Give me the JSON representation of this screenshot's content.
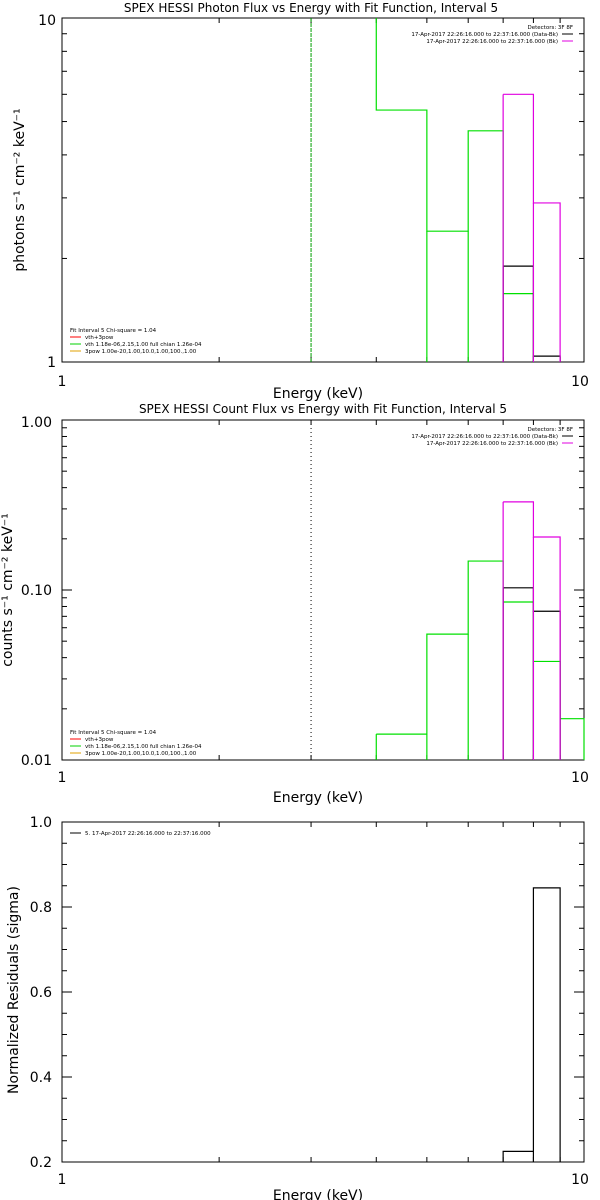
{
  "chart_data": [
    {
      "type": "step",
      "title": "SPEX HESSI Photon Flux vs Energy with Fit Function, Interval 5",
      "xlabel": "Energy (keV)",
      "ylabel": "photons s⁻¹ cm⁻² keV⁻¹",
      "xscale": "log",
      "yscale": "log",
      "xlim": [
        1,
        10
      ],
      "ylim": [
        1,
        10
      ],
      "x_ticks": [
        "1",
        "10"
      ],
      "y_ticks": [
        "1",
        "10"
      ],
      "vline": {
        "x": 3.0,
        "color": "#00a000",
        "style": "dashed"
      },
      "legend_top_right": {
        "header": "Detectors: 3F 8F",
        "entries": [
          {
            "label": "17-Apr-2017 22:26:16.000 to 22:37:16.000 (Data-Bk)",
            "color": "#000000"
          },
          {
            "label": "17-Apr-2017 22:26:16.000 to 22:37:16.000 (Bk)",
            "color": "#e000e0"
          }
        ]
      },
      "legend_bottom_left": {
        "header": "Fit Interval 5   Chi-square = 1.04",
        "entries": [
          {
            "label": "vth+3pow",
            "color": "#ff0000"
          },
          {
            "label": "vth 1.18e-06,2.15,1.00  full chian 1.26e-04",
            "color": "#00d000"
          },
          {
            "label": "3pow 1.00e-20,1.00,10.0,1.00,100.,1.00",
            "color": "#e0a000"
          }
        ]
      },
      "series": [
        {
          "color": "#00e000",
          "edges": [
            4.0,
            5.0,
            6.0,
            7.0,
            8.0
          ],
          "values": [
            5.4,
            2.4,
            4.7,
            1.58
          ],
          "left_edge_to_top": true
        },
        {
          "color": "#000000",
          "edges": [
            7.0,
            8.0,
            9.0
          ],
          "values": [
            1.9,
            1.04
          ]
        },
        {
          "color": "#e000e0",
          "edges": [
            7.0,
            8.0,
            9.0
          ],
          "values": [
            6.0,
            2.9
          ]
        }
      ]
    },
    {
      "type": "step",
      "title": "SPEX HESSI Count Flux vs Energy with Fit Function, Interval 5",
      "xlabel": "Energy (keV)",
      "ylabel": "counts s⁻¹ cm⁻² keV⁻¹",
      "xscale": "log",
      "yscale": "log",
      "xlim": [
        1,
        10
      ],
      "ylim": [
        0.01,
        1.0
      ],
      "x_ticks": [
        "1",
        "10"
      ],
      "y_ticks": [
        "0.01",
        "0.10",
        "1.00"
      ],
      "vline": {
        "x": 3.0,
        "color": "#000000",
        "style": "dotted"
      },
      "legend_top_right": {
        "header": "Detectors: 3F 8F",
        "entries": [
          {
            "label": "17-Apr-2017 22:26:16.000 to 22:37:16.000 (Data-Bk)",
            "color": "#000000"
          },
          {
            "label": "17-Apr-2017 22:26:16.000 to 22:37:16.000 (Bk)",
            "color": "#e000e0"
          }
        ]
      },
      "legend_bottom_left": {
        "header": "Fit Interval 5   Chi-square = 1.04",
        "entries": [
          {
            "label": "vth+3pow",
            "color": "#ff0000"
          },
          {
            "label": "vth 1.18e-06,2.15,1.00  full chian 1.26e-04",
            "color": "#00d000"
          },
          {
            "label": "3pow 1.00e-20,1.00,10.0,1.00,100.,1.00",
            "color": "#e0a000"
          }
        ]
      },
      "series": [
        {
          "color": "#00e000",
          "edges": [
            4.0,
            5.0,
            6.0,
            7.0,
            8.0,
            9.0,
            10.0
          ],
          "values": [
            0.0142,
            0.055,
            0.148,
            0.085,
            0.038,
            0.0175
          ]
        },
        {
          "color": "#000000",
          "edges": [
            7.0,
            8.0,
            9.0
          ],
          "values": [
            0.103,
            0.075
          ]
        },
        {
          "color": "#e000e0",
          "edges": [
            7.0,
            8.0,
            9.0
          ],
          "values": [
            0.33,
            0.205
          ]
        }
      ]
    },
    {
      "type": "step",
      "title": "",
      "xlabel": "Energy (keV)",
      "ylabel": "Normalized Residuals (sigma)",
      "xscale": "log",
      "yscale": "linear",
      "xlim": [
        1,
        10
      ],
      "ylim": [
        0.2,
        1.0
      ],
      "x_ticks": [
        "1",
        "10"
      ],
      "y_ticks": [
        "0.2",
        "0.4",
        "0.6",
        "0.8",
        "1.0"
      ],
      "legend_top_left": {
        "entries": [
          {
            "label": "5. 17-Apr-2017 22:26:16.000 to 22:37:16.000",
            "color": "#000000"
          }
        ]
      },
      "series": [
        {
          "color": "#000000",
          "edges": [
            7.0,
            8.0,
            9.0
          ],
          "values": [
            0.225,
            0.845
          ],
          "drop_to_bottom": true
        }
      ]
    }
  ]
}
